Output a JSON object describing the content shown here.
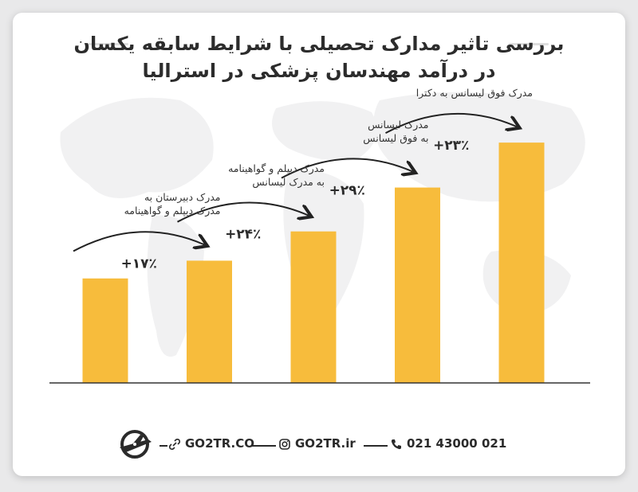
{
  "title": {
    "line1": "بررسی تاثیر مدارک تحصیلی با شرایط سابقه یکسان",
    "line2": "در درآمد مهندسان پزشکی در استرالیا"
  },
  "colors": {
    "bar": "#f7bc3c",
    "text": "#2c2c2c",
    "background": "#ffffff"
  },
  "chart_data": {
    "type": "bar",
    "title": "بررسی تاثیر مدارک تحصیلی با شرایط سابقه یکسان در درآمد مهندسان پزشکی در استرالیا",
    "categories": [
      "",
      "",
      "",
      "",
      ""
    ],
    "values": [
      100,
      117,
      145,
      187,
      230
    ],
    "ylim": [
      0,
      240
    ],
    "grid": false,
    "annotations": [
      {
        "from": 0,
        "to": 1,
        "label_line1": "مدرک دبیرستان به",
        "label_line2": "مدرک دیپلم و گواهینامه",
        "change": "+۱۷٪"
      },
      {
        "from": 1,
        "to": 2,
        "label_line1": "مدرک دیپلم و گواهینامه",
        "label_line2": "به مدرک لیسانس",
        "change": "+۲۴٪"
      },
      {
        "from": 2,
        "to": 3,
        "label_line1": "مدرک لیسانس",
        "label_line2": "به فوق لیسانس",
        "change": "+۲۹٪"
      },
      {
        "from": 3,
        "to": 4,
        "label_line1": "مدرک فوق لیسانس به دکترا",
        "label_line2": "",
        "change": "+۲۳٪"
      }
    ]
  },
  "footer": {
    "website": "GO2TR.CO",
    "instagram": "GO2TR.ir",
    "phone": "021 43000 021",
    "icons": [
      "link-icon",
      "instagram-icon",
      "phone-icon",
      "plane-logo-icon"
    ]
  }
}
